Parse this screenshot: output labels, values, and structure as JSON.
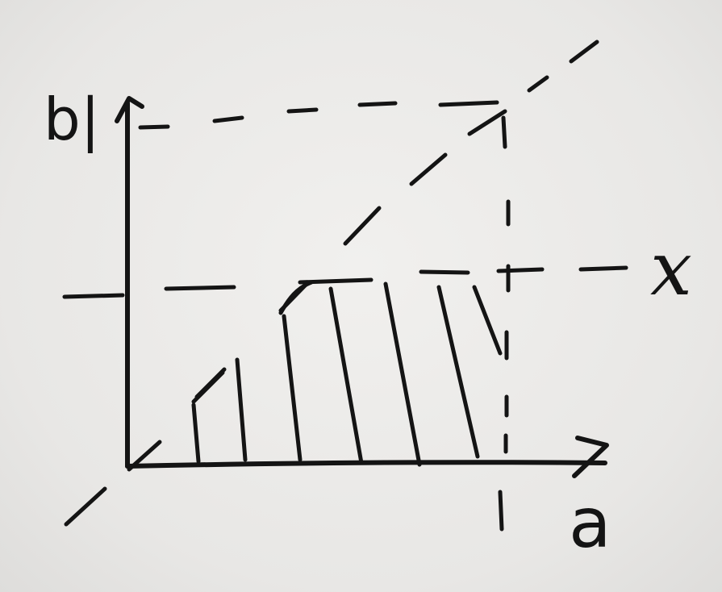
{
  "labels": {
    "y_top": "b|",
    "x_right": "x",
    "x_tick": "|",
    "x_axis": "a"
  },
  "ink_color": "#141414"
}
